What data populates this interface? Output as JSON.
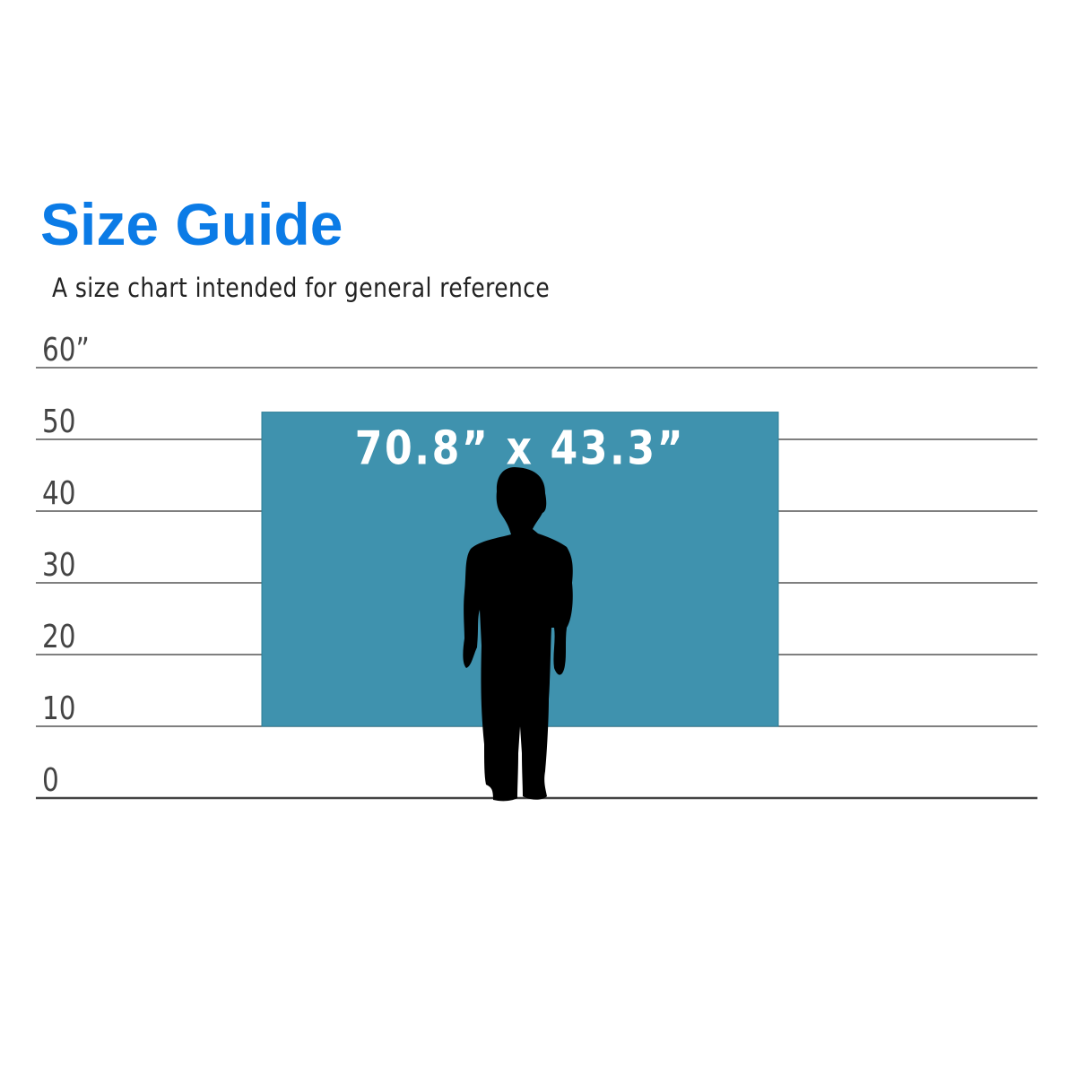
{
  "title": "Size Guide",
  "subtitle": "A size chart intended for general reference",
  "chart_data": {
    "type": "bar",
    "title": "Size Guide",
    "subtitle": "A size chart intended for general reference",
    "y_ticks": [
      {
        "value": 0,
        "label": "0"
      },
      {
        "value": 10,
        "label": "10"
      },
      {
        "value": 20,
        "label": "20"
      },
      {
        "value": 30,
        "label": "30"
      },
      {
        "value": 40,
        "label": "40"
      },
      {
        "value": 50,
        "label": "50"
      },
      {
        "value": 60,
        "label": "60”"
      }
    ],
    "ylim": [
      0,
      60
    ],
    "grid": true,
    "product": {
      "label": "70.8” x 43.3”",
      "width": 70.8,
      "height": 43.3,
      "bottom": 10,
      "color": "#3f92ae"
    },
    "reference_figure": "child-silhouette"
  },
  "colors": {
    "title": "#0b7be6",
    "grid": "#555555",
    "product": "#3f92ae"
  }
}
